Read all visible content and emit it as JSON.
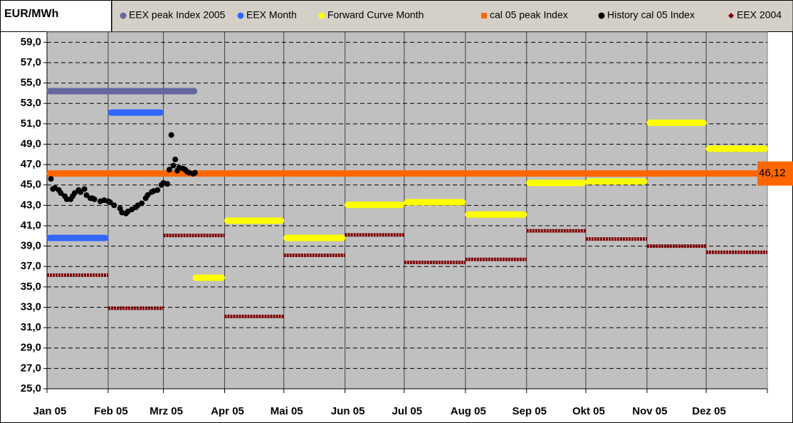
{
  "chart_data": {
    "type": "step",
    "ylabel": "EUR/MWh",
    "legend": "top",
    "grid": true,
    "xlim": [
      0,
      365
    ],
    "xticks": [
      {
        "value": 0,
        "label": "Jan 05"
      },
      {
        "value": 31,
        "label": "Feb 05"
      },
      {
        "value": 59,
        "label": "Mrz 05"
      },
      {
        "value": 90,
        "label": "Apr 05"
      },
      {
        "value": 120,
        "label": "Mai 05"
      },
      {
        "value": 151,
        "label": "Jun 05"
      },
      {
        "value": 181,
        "label": "Jul 05"
      },
      {
        "value": 212,
        "label": "Aug 05"
      },
      {
        "value": 243,
        "label": "Sep 05"
      },
      {
        "value": 273,
        "label": "Okt 05"
      },
      {
        "value": 304,
        "label": "Nov 05"
      },
      {
        "value": 334,
        "label": "Dez 05"
      }
    ],
    "ylim": [
      25,
      60
    ],
    "yticks": [
      {
        "value": 25,
        "label": "25,0"
      },
      {
        "value": 27,
        "label": "27,0"
      },
      {
        "value": 29,
        "label": "29,0"
      },
      {
        "value": 31,
        "label": "31,0"
      },
      {
        "value": 33,
        "label": "33,0"
      },
      {
        "value": 35,
        "label": "35,0"
      },
      {
        "value": 37,
        "label": "37,0"
      },
      {
        "value": 39,
        "label": "39,0"
      },
      {
        "value": 41,
        "label": "41,0"
      },
      {
        "value": 43,
        "label": "43,0"
      },
      {
        "value": 45,
        "label": "45,0"
      },
      {
        "value": 47,
        "label": "47,0"
      },
      {
        "value": 49,
        "label": "49,0"
      },
      {
        "value": 51,
        "label": "51,0"
      },
      {
        "value": 53,
        "label": "53,0"
      },
      {
        "value": 55,
        "label": "55,0"
      },
      {
        "value": 57,
        "label": "57,0"
      },
      {
        "value": 59,
        "label": "59,0"
      }
    ],
    "series": [
      {
        "name": "EEX peak Index 2005",
        "color": "#6666a0",
        "marker": "circle",
        "style": "segment",
        "x": [
          0
        ],
        "x_end": [
          76
        ],
        "values": [
          54.2
        ]
      },
      {
        "name": "EEX Month",
        "color": "#3366ff",
        "marker": "circle",
        "style": "segment",
        "x": [
          0,
          31
        ],
        "x_end": [
          31,
          59
        ],
        "values": [
          39.8,
          52.1
        ]
      },
      {
        "name": "Forward Curve Month",
        "color": "#ffff00",
        "marker": "circle",
        "style": "segment",
        "x": [
          74,
          90,
          120,
          151,
          181,
          212,
          243,
          273,
          304,
          334
        ],
        "x_end": [
          90,
          120,
          151,
          181,
          212,
          243,
          273,
          304,
          334,
          365
        ],
        "values": [
          35.9,
          41.5,
          39.8,
          43.05,
          43.3,
          42.1,
          45.2,
          45.35,
          51.1,
          48.55
        ]
      },
      {
        "name": "cal 05 peak Index",
        "color": "#ff6600",
        "marker": "square",
        "style": "segment",
        "x": [
          0
        ],
        "x_end": [
          365
        ],
        "values": [
          46.12
        ],
        "value_labels": [
          "46,12"
        ]
      },
      {
        "name": "History cal 05 Index",
        "color": "#000000",
        "marker": "circle",
        "style": "scatter",
        "x": [
          2,
          3,
          4,
          6,
          7,
          9,
          10,
          12,
          13,
          14,
          16,
          17,
          19,
          20,
          22,
          23,
          24,
          27,
          29,
          31,
          32,
          34,
          37,
          38,
          40,
          41,
          43,
          45,
          46,
          48,
          50,
          51,
          53,
          54,
          56,
          58,
          59,
          61,
          62,
          63,
          64,
          65,
          66,
          67,
          69,
          70,
          71,
          72,
          74,
          75
        ],
        "values": [
          45.6,
          44.6,
          44.7,
          44.5,
          44.2,
          43.9,
          43.6,
          43.6,
          43.9,
          44.2,
          44.5,
          44.3,
          44.6,
          44.0,
          43.7,
          43.7,
          43.6,
          43.4,
          43.5,
          43.4,
          43.3,
          43.0,
          42.7,
          42.3,
          42.2,
          42.4,
          42.6,
          42.8,
          43.0,
          43.2,
          43.7,
          44.0,
          44.3,
          44.4,
          44.5,
          45.0,
          45.2,
          45.1,
          46.5,
          49.9,
          46.9,
          47.5,
          46.4,
          46.7,
          46.6,
          46.5,
          46.3,
          46.2,
          46.1,
          46.2
        ]
      },
      {
        "name": "EEX 2004",
        "color": "#800000",
        "marker": "diamond",
        "style": "dotted",
        "x": [
          0,
          31,
          59,
          90,
          120,
          151,
          181,
          212,
          243,
          273,
          304,
          334
        ],
        "x_end": [
          31,
          59,
          90,
          120,
          151,
          181,
          212,
          243,
          273,
          304,
          334,
          365
        ],
        "values": [
          36.15,
          32.9,
          40.05,
          32.1,
          38.1,
          40.1,
          37.4,
          37.7,
          40.5,
          39.7,
          39.0,
          38.4
        ]
      }
    ]
  }
}
